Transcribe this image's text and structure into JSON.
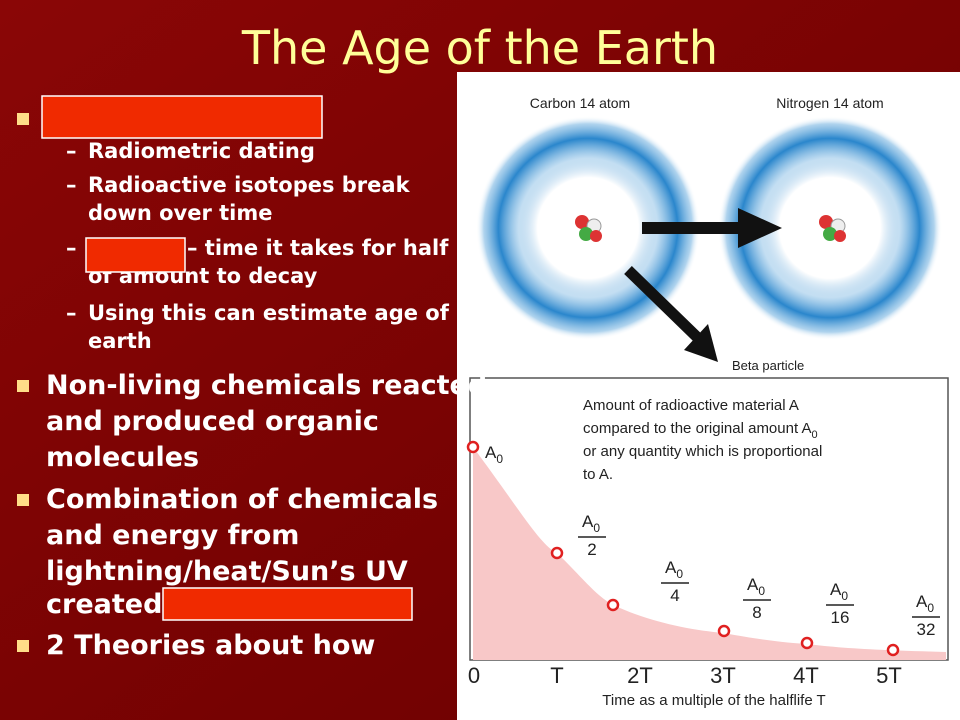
{
  "title": "The Age of the Earth",
  "bullets": [
    {
      "subitems": [
        {
          "lines": [
            "Radiometric dating"
          ]
        },
        {
          "lines": [
            "Radioactive isotopes break",
            "down over time"
          ]
        },
        {
          "lines": [
            "– time it takes for half",
            "of amount to decay"
          ]
        },
        {
          "lines": [
            "Using this can estimate age of",
            "earth"
          ]
        }
      ]
    },
    {
      "lines": [
        "Non-living chemicals reacted",
        "and produced organic",
        "molecules"
      ]
    },
    {
      "lines": [
        "Combination of chemicals",
        "and energy from",
        "lightning/heat/Sun’s UV",
        "created"
      ]
    },
    {
      "lines": [
        "2 Theories about how"
      ]
    }
  ],
  "figure": {
    "atom_labels": [
      "Carbon 14 atom",
      "Nitrogen 14 atom"
    ],
    "particle_label": "Beta particle",
    "annotation": {
      "lines": [
        "Amount of radioactive material A",
        "compared to the original amount A",
        "or any quantity which is proportional",
        "to A."
      ],
      "subscript": "0"
    },
    "point_labels": [
      {
        "symbol": "A",
        "subscript": "0"
      },
      {
        "symbol": "A",
        "subscript": "0",
        "denominator": "2"
      },
      {
        "symbol": "A",
        "subscript": "0",
        "denominator": "4"
      },
      {
        "symbol": "A",
        "subscript": "0",
        "denominator": "8"
      },
      {
        "symbol": "A",
        "subscript": "0",
        "denominator": "16"
      },
      {
        "symbol": "A",
        "subscript": "0",
        "denominator": "32"
      }
    ],
    "x_ticks": [
      "0",
      "T",
      "2T",
      "3T",
      "4T",
      "5T"
    ],
    "x_axis_label": "Time as a multiple of the halflife T"
  }
}
